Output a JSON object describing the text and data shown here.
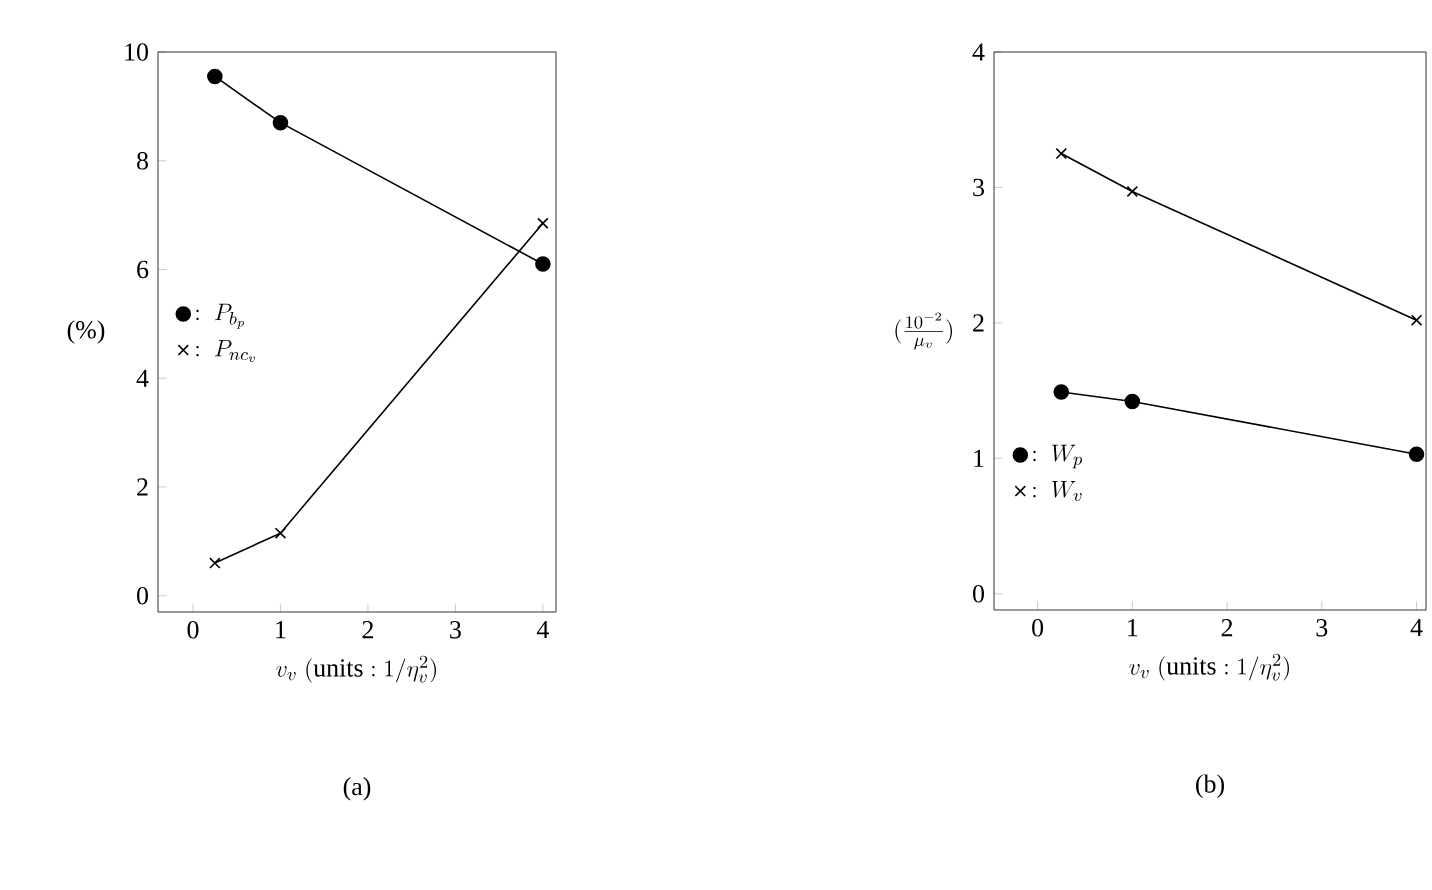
{
  "chart_data": [
    {
      "type": "line",
      "title": "(a)",
      "xlabel": "v_v\\ (\\mathrm{units:}\\ 1/\\eta_v^2)",
      "ylabel": "(%)",
      "x": [
        0.25,
        1,
        4
      ],
      "xlim": [
        -0.4,
        4.15
      ],
      "ylim": [
        -0.3,
        10
      ],
      "xticks": [
        0,
        1,
        2,
        3,
        4
      ],
      "yticks": [
        0,
        2,
        4,
        6,
        8,
        10
      ],
      "grid": false,
      "legend": "left",
      "line_style": "solid",
      "series": [
        {
          "name": ":\\ P_{b_p}",
          "color": "#000000",
          "marker": "circle",
          "values": [
            9.55,
            8.7,
            6.1
          ]
        },
        {
          "name": ":\\ P_{nc_v}",
          "color": "#000000",
          "marker": "cross",
          "values": [
            0.6,
            1.15,
            6.85
          ]
        }
      ]
    },
    {
      "type": "line",
      "title": "(b)",
      "xlabel": "v_v\\ (\\mathrm{units:}\\ 1/\\eta_v^2)",
      "ylabel": "(\\frac{10^{-2}}{\\mu_v})",
      "x": [
        0.25,
        1,
        4
      ],
      "xlim": [
        -0.46,
        4.1
      ],
      "ylim": [
        -0.12,
        4
      ],
      "xticks": [
        0,
        1,
        2,
        3,
        4
      ],
      "yticks": [
        0,
        1,
        2,
        3,
        4
      ],
      "grid": false,
      "legend": "bottom left",
      "line_style": "solid",
      "series": [
        {
          "name": ":\\ W_p",
          "color": "#000000",
          "marker": "circle",
          "values": [
            1.49,
            1.42,
            1.03
          ]
        },
        {
          "name": ":\\ W_v",
          "color": "#000000",
          "marker": "cross",
          "values": [
            3.25,
            2.97,
            2.02
          ]
        }
      ]
    }
  ]
}
